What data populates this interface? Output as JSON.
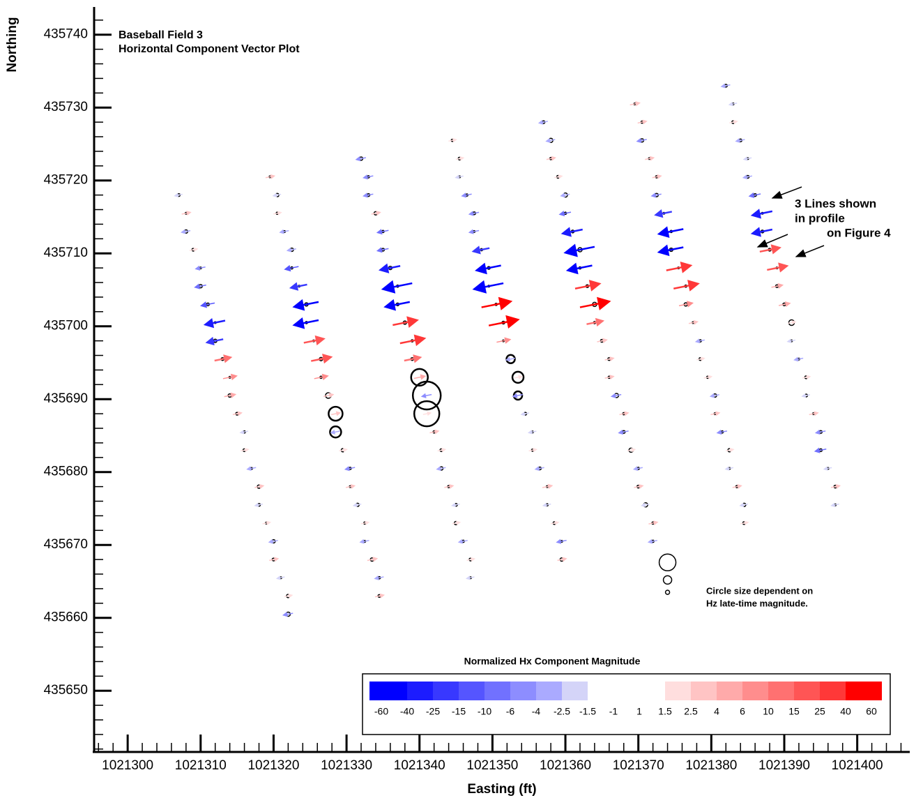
{
  "chart_data": {
    "type": "vector",
    "title": "Baseball Field 3",
    "subtitle": "Horizontal Component Vector Plot",
    "x_label": "Easting (ft)",
    "y_label": "Northing",
    "annotations": [
      "3 Lines shown",
      "in profile",
      "on Figure 4"
    ],
    "size_note": [
      "Circle size dependent on",
      "Hz late-time magnitude."
    ],
    "xlim": [
      1021295.4,
      1021407.2
    ],
    "ylim": [
      435641.6,
      435743.8
    ],
    "xticks": [
      1021300,
      1021310,
      1021320,
      1021330,
      1021340,
      1021350,
      1021360,
      1021370,
      1021380,
      1021390,
      1021400
    ],
    "yticks": [
      435650,
      435660,
      435670,
      435680,
      435690,
      435700,
      435710,
      435720,
      435730,
      435740
    ],
    "colorbar": {
      "title": "Normalized Hx Component Magnitude",
      "levels": [
        -60,
        -40,
        -25,
        -15,
        -10,
        -6,
        -4,
        -2.5,
        -1.5,
        -1,
        1,
        1.5,
        2.5,
        4,
        6,
        10,
        15,
        25,
        40,
        60
      ],
      "colors": [
        "#0000ff",
        "#1c1cff",
        "#3838ff",
        "#5555ff",
        "#7171ff",
        "#8d8dff",
        "#aaaaff",
        "#d4d4f8",
        "#ffffff",
        "#ffffff",
        "#ffffff",
        "#ffdede",
        "#ffc4c4",
        "#ffaaaa",
        "#ff8d8d",
        "#ff7171",
        "#ff5555",
        "#ff3838",
        "#ff0000"
      ]
    },
    "size_legend": {
      "x": [
        1021374,
        1021374,
        1021374
      ],
      "y": [
        435667.6,
        435665.2,
        435663.5
      ],
      "hz": [
        6,
        3,
        1.5
      ]
    },
    "series": [
      {
        "x": [
          1021307,
          1021319.5,
          1021332,
          1021344.5,
          1021357,
          1021369.5,
          1021382
        ],
        "y": [
          435718,
          435720.5,
          435723,
          435725.5,
          435728,
          435730.5,
          435733
        ],
        "hx": [
          -2,
          3,
          -4,
          2,
          -3,
          4,
          -3
        ],
        "hz": [
          1,
          0.6,
          1.2,
          0.8,
          1,
          0.6,
          1
        ]
      },
      {
        "x": [
          1021308,
          1021320.5,
          1021333,
          1021345.5,
          1021358,
          1021370.5,
          1021383
        ],
        "y": [
          435715.5,
          435718,
          435720.5,
          435723,
          435725.5,
          435728,
          435730.5
        ],
        "hx": [
          3,
          -2,
          -4,
          2,
          -3,
          3,
          -2
        ],
        "hz": [
          0.6,
          1.2,
          0.8,
          1,
          1.5,
          0.8,
          0.6
        ]
      },
      {
        "x": [
          1021308,
          1021320.5,
          1021333,
          1021345.5,
          1021358,
          1021370.5,
          1021383
        ],
        "y": [
          435713,
          435715.5,
          435718,
          435720.5,
          435723,
          435725.5,
          435728
        ],
        "hx": [
          -3,
          2,
          -4,
          -2,
          3,
          -4,
          2
        ],
        "hz": [
          1.2,
          0.8,
          1,
          0.6,
          0.8,
          1.2,
          1
        ]
      },
      {
        "x": [
          1021309,
          1021321.5,
          1021334,
          1021346.5,
          1021359,
          1021371.5,
          1021384
        ],
        "y": [
          435710.5,
          435713,
          435715.5,
          435718,
          435720.5,
          435723,
          435725.5
        ],
        "hx": [
          2,
          -3,
          3,
          -4,
          2,
          3,
          -3
        ],
        "hz": [
          1,
          0.6,
          1.2,
          0.8,
          1,
          0.6,
          1
        ]
      },
      {
        "x": [
          1021310,
          1021322.5,
          1021335,
          1021347.5,
          1021360,
          1021372.5,
          1021385
        ],
        "y": [
          435708,
          435710.5,
          435713,
          435715.5,
          435718,
          435720.5,
          435723
        ],
        "hx": [
          -4,
          -3,
          -6,
          -4,
          -3,
          3,
          -2
        ],
        "hz": [
          0.6,
          1.2,
          0.8,
          1,
          1.5,
          0.8,
          0.6
        ]
      },
      {
        "x": [
          1021310,
          1021322.5,
          1021335,
          1021347.5,
          1021360,
          1021372.5,
          1021385
        ],
        "y": [
          435705.5,
          435708,
          435710.5,
          435713,
          435715.5,
          435718,
          435720.5
        ],
        "hx": [
          -6,
          -10,
          -6,
          -4,
          -6,
          -4,
          -3
        ],
        "hz": [
          1.2,
          0.8,
          1,
          0.6,
          0.8,
          1.2,
          1
        ]
      },
      {
        "x": [
          1021311,
          1021323.5,
          1021336,
          1021348.5,
          1021361,
          1021373.5,
          1021386
        ],
        "y": [
          435703,
          435705.5,
          435708,
          435710.5,
          435713,
          435715.5,
          435718
        ],
        "hx": [
          -10,
          -15,
          -25,
          -15,
          -25,
          -15,
          -6
        ],
        "hz": [
          1,
          0.6,
          1.2,
          0.8,
          1,
          0.6,
          1
        ]
      },
      {
        "x": [
          1021312,
          1021324.5,
          1021337,
          1021349.5,
          1021362,
          1021374.5,
          1021387
        ],
        "y": [
          435700.5,
          435703,
          435705.5,
          435708,
          435710.5,
          435713,
          435715.5
        ],
        "hx": [
          -25,
          -40,
          -60,
          -40,
          -60,
          -40,
          -25
        ],
        "hz": [
          0.6,
          1.2,
          0.8,
          1,
          1.5,
          0.8,
          0.6
        ]
      },
      {
        "x": [
          1021312,
          1021324.5,
          1021337,
          1021349.5,
          1021362,
          1021374.5,
          1021387
        ],
        "y": [
          435698,
          435700.5,
          435703,
          435705.5,
          435708,
          435710.5,
          435713
        ],
        "hx": [
          -15,
          -40,
          -40,
          -60,
          -40,
          -40,
          -25
        ],
        "hz": [
          1.2,
          0.8,
          1,
          0.6,
          0.8,
          1.2,
          1
        ]
      },
      {
        "x": [
          1021313,
          1021325.5,
          1021338,
          1021350.5,
          1021363,
          1021375.5,
          1021388
        ],
        "y": [
          435695.5,
          435698,
          435700.5,
          435703,
          435705.5,
          435708,
          435710.5
        ],
        "hx": [
          15,
          25,
          40,
          60,
          40,
          40,
          25
        ],
        "hz": [
          1,
          0.6,
          1.2,
          0.8,
          1,
          0.6,
          1
        ]
      },
      {
        "x": [
          1021314,
          1021326.5,
          1021339,
          1021351.5,
          1021364,
          1021376.5,
          1021389
        ],
        "y": [
          435693,
          435695.5,
          435698,
          435700.5,
          435703,
          435705.5,
          435708
        ],
        "hx": [
          10,
          25,
          40,
          60,
          60,
          40,
          25
        ],
        "hz": [
          0.6,
          1.2,
          0.8,
          1,
          1.5,
          0.8,
          0.6
        ]
      },
      {
        "x": [
          1021314,
          1021326.5,
          1021339,
          1021351.5,
          1021364,
          1021376.5,
          1021389
        ],
        "y": [
          435690.5,
          435693,
          435695.5,
          435698,
          435700.5,
          435703,
          435705.5
        ],
        "hx": [
          6,
          10,
          15,
          10,
          15,
          10,
          6
        ],
        "hz": [
          1.2,
          0.8,
          1,
          0.6,
          0.8,
          1.2,
          1
        ]
      },
      {
        "x": [
          1021315,
          1021327.5,
          1021340,
          1021352.5,
          1021365,
          1021377.5,
          1021390
        ],
        "y": [
          435688,
          435690.5,
          435693,
          435695.5,
          435698,
          435700.5,
          435703
        ],
        "hx": [
          3,
          4,
          6,
          -3,
          4,
          3,
          6
        ],
        "hz": [
          1,
          2,
          6,
          3,
          1,
          0.6,
          1
        ]
      },
      {
        "x": [
          1021316,
          1021328.5,
          1021341,
          1021353.5,
          1021366,
          1021378.5,
          1021391
        ],
        "y": [
          435685.5,
          435688,
          435690.5,
          435693,
          435695.5,
          435698,
          435700.5
        ],
        "hx": [
          -2,
          3,
          -4,
          2,
          3,
          -3,
          2
        ],
        "hz": [
          0.8,
          5,
          10,
          4,
          1,
          0.8,
          2
        ]
      },
      {
        "x": [
          1021316,
          1021328.5,
          1021341,
          1021353.5,
          1021366,
          1021378.5,
          1021391
        ],
        "y": [
          435683,
          435685.5,
          435688,
          435690.5,
          435693,
          435695.5,
          435698
        ],
        "hx": [
          2,
          -3,
          2,
          -4,
          3,
          2,
          -2
        ],
        "hz": [
          1,
          4,
          9,
          3,
          0.8,
          1,
          0.6
        ]
      },
      {
        "x": [
          1021317,
          1021329.5,
          1021342,
          1021354.5,
          1021367,
          1021379.5,
          1021392
        ],
        "y": [
          435680.5,
          435683,
          435685.5,
          435688,
          435690.5,
          435693,
          435695.5
        ],
        "hx": [
          -3,
          2,
          3,
          -2,
          -4,
          2,
          -3
        ],
        "hz": [
          0.6,
          1.2,
          0.8,
          1,
          1.5,
          0.8,
          0.6
        ]
      },
      {
        "x": [
          1021318,
          1021330.5,
          1021343,
          1021355.5,
          1021368,
          1021380.5,
          1021393
        ],
        "y": [
          435678,
          435680.5,
          435683,
          435685.5,
          435688,
          435690.5,
          435693
        ],
        "hx": [
          3,
          -4,
          2,
          -2,
          3,
          -3,
          2
        ],
        "hz": [
          1.2,
          0.8,
          1,
          0.6,
          0.8,
          1.2,
          1
        ]
      },
      {
        "x": [
          1021318,
          1021330.5,
          1021343,
          1021355.5,
          1021368,
          1021380.5,
          1021393
        ],
        "y": [
          435675.5,
          435678,
          435680.5,
          435683,
          435685.5,
          435688,
          435690.5
        ],
        "hx": [
          -2,
          3,
          -3,
          2,
          -4,
          3,
          -2
        ],
        "hz": [
          1,
          0.6,
          1.2,
          0.8,
          1,
          0.6,
          1
        ]
      },
      {
        "x": [
          1021319,
          1021331.5,
          1021344,
          1021356.5,
          1021369,
          1021381.5,
          1021394
        ],
        "y": [
          435673,
          435675.5,
          435678,
          435680.5,
          435683,
          435685.5,
          435688
        ],
        "hx": [
          2,
          -2,
          3,
          -3,
          2,
          -4,
          3
        ],
        "hz": [
          0.6,
          1.2,
          0.8,
          1,
          1.5,
          0.8,
          0.6
        ]
      },
      {
        "x": [
          1021320,
          1021332.5,
          1021345,
          1021357.5,
          1021370,
          1021382.5,
          1021395
        ],
        "y": [
          435670.5,
          435673,
          435675.5,
          435678,
          435680.5,
          435683,
          435685.5
        ],
        "hx": [
          -3,
          2,
          -2,
          4,
          -3,
          2,
          -4
        ],
        "hz": [
          1.2,
          0.8,
          1,
          0.6,
          0.8,
          1.2,
          1
        ]
      },
      {
        "x": [
          1021320,
          1021332.5,
          1021345,
          1021357.5,
          1021370,
          1021382.5,
          1021395
        ],
        "y": [
          435668,
          435670.5,
          435673,
          435675.5,
          435678,
          435680.5,
          435683
        ],
        "hx": [
          3,
          -3,
          2,
          -2,
          3,
          -2,
          -6
        ],
        "hz": [
          1,
          0.6,
          1.2,
          0.8,
          1,
          0.6,
          1
        ]
      },
      {
        "x": [
          1021321,
          1021333.5,
          1021346,
          1021358.5,
          1021371,
          1021383.5,
          1021396
        ],
        "y": [
          435665.5,
          435668,
          435670.5,
          435673,
          435675.5,
          435678,
          435680.5
        ],
        "hx": [
          -2,
          4,
          -3,
          2,
          -2,
          3,
          -2
        ],
        "hz": [
          0.6,
          1.2,
          0.8,
          1,
          1.5,
          0.8,
          0.6
        ]
      },
      {
        "x": [
          1021322,
          1021334.5,
          1021347,
          1021359.5,
          1021372,
          1021384.5,
          1021397
        ],
        "y": [
          435663,
          435665.5,
          435668,
          435670.5,
          435673,
          435675.5,
          435678
        ],
        "hx": [
          2,
          -3,
          2,
          -4,
          3,
          -2,
          3
        ],
        "hz": [
          1.2,
          0.8,
          1,
          0.6,
          0.8,
          1.2,
          1
        ]
      },
      {
        "x": [
          1021322,
          1021334.5,
          1021347,
          1021359.5,
          1021372,
          1021384.5,
          1021397
        ],
        "y": [
          435660.5,
          435663,
          435665.5,
          435668,
          435670.5,
          435673,
          435675.5
        ],
        "hx": [
          -4,
          3,
          -2,
          3,
          -3,
          2,
          -2
        ],
        "hz": [
          1.5,
          1,
          0.6,
          1.2,
          0.8,
          1,
          0.6
        ]
      }
    ]
  }
}
